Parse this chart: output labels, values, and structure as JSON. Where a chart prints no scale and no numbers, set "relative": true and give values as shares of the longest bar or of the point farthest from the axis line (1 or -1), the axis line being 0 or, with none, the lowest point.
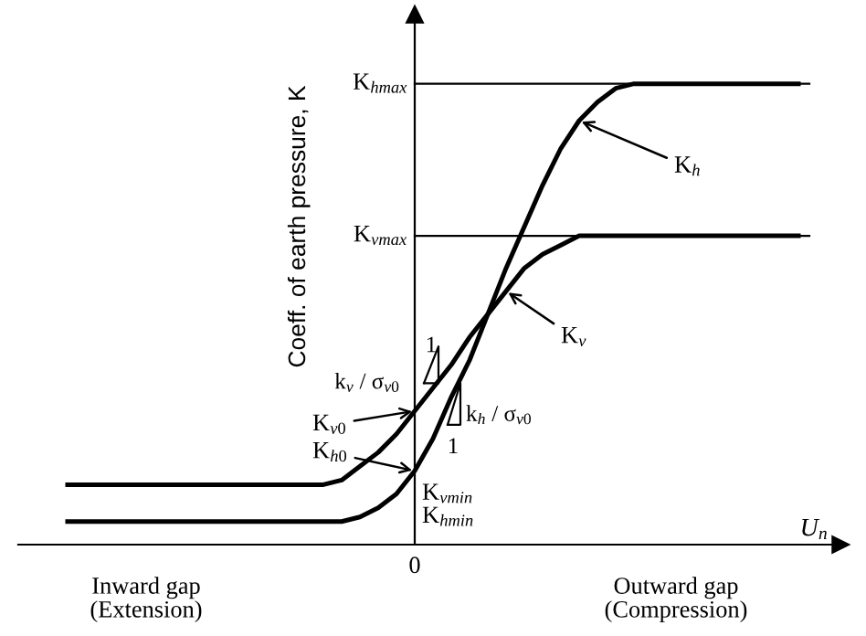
{
  "chart_data": {
    "type": "line",
    "relative": true,
    "xlabel": "U$_{n}$",
    "ylabel": "Coeff. of earth pressure, K",
    "categories": [
      null,
      null,
      null,
      null,
      null,
      null,
      null,
      null,
      null,
      null,
      null,
      null,
      null,
      null,
      null,
      null,
      null,
      null,
      null,
      null,
      null,
      null,
      null,
      null,
      null,
      null,
      null,
      null,
      null,
      null,
      null,
      null,
      null,
      null,
      null,
      null,
      null,
      null,
      null,
      null,
      null
    ],
    "series": [
      {
        "color": "#000000",
        "values": [
          0.05,
          0.05,
          0.05,
          0.05,
          0.05,
          0.05,
          0.05,
          0.05,
          0.05,
          0.05,
          0.05,
          0.05,
          0.05,
          0.05,
          0.05,
          0.05,
          0.06,
          0.08,
          0.11,
          0.16,
          0.23,
          0.32,
          0.4,
          0.5,
          0.6,
          0.69,
          0.78,
          0.86,
          0.92,
          0.96,
          0.99,
          1,
          1,
          1,
          1,
          1,
          1,
          1,
          1,
          1,
          1
        ]
      },
      {
        "color": "#000000",
        "values": [
          0.13,
          0.13,
          0.13,
          0.13,
          0.13,
          0.13,
          0.13,
          0.13,
          0.13,
          0.13,
          0.13,
          0.13,
          0.13,
          0.13,
          0.13,
          0.14,
          0.17,
          0.2,
          0.24,
          0.29,
          0.34,
          0.39,
          0.45,
          0.5,
          0.55,
          0.6,
          0.63,
          0.65,
          0.67,
          0.67,
          0.67,
          0.67,
          0.67,
          0.67,
          0.67,
          0.67,
          0.67,
          0.67,
          0.67,
          0.67,
          0.67
        ]
      }
    ],
    "ref_lines": [
      {
        "axis": "y",
        "value": 1,
        "color": "#000000"
      },
      {
        "axis": "y",
        "value": 0.67,
        "color": "#000000"
      }
    ],
    "annotations": [
      "K$_{hmax}$",
      "K$_{vmax}$",
      "K$_{vmin}$",
      "K$_{hmin}$",
      "K$_{h}$",
      "K$_{v}$",
      "K$_{v0}$",
      "K$_{h0}$",
      "k$_{v}$ / σ$_{v0}$",
      "k$_{h}$ / σ$_{v0}$",
      "1",
      "1",
      "0",
      "Inward gap\n(Extension)",
      "Outward gap\n(Compression)"
    ]
  }
}
